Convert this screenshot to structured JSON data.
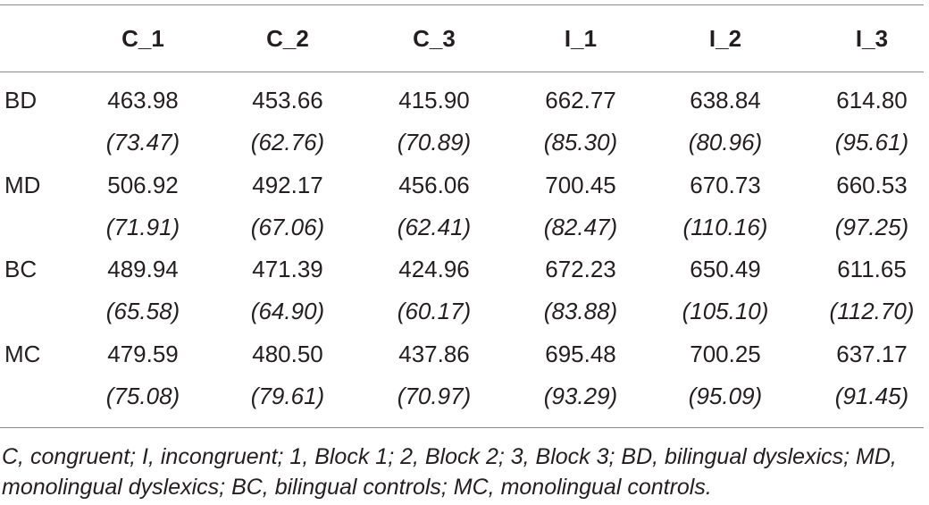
{
  "table": {
    "columns": [
      "C_1",
      "C_2",
      "C_3",
      "I_1",
      "I_2",
      "I_3"
    ],
    "rows": [
      {
        "label": "BD",
        "means": [
          "463.98",
          "453.66",
          "415.90",
          "662.77",
          "638.84",
          "614.80"
        ],
        "sds": [
          "(73.47)",
          "(62.76)",
          "(70.89)",
          "(85.30)",
          "(80.96)",
          "(95.61)"
        ]
      },
      {
        "label": "MD",
        "means": [
          "506.92",
          "492.17",
          "456.06",
          "700.45",
          "670.73",
          "660.53"
        ],
        "sds": [
          "(71.91)",
          "(67.06)",
          "(62.41)",
          "(82.47)",
          "(110.16)",
          "(97.25)"
        ]
      },
      {
        "label": "BC",
        "means": [
          "489.94",
          "471.39",
          "424.96",
          "672.23",
          "650.49",
          "611.65"
        ],
        "sds": [
          "(65.58)",
          "(64.90)",
          "(60.17)",
          "(83.88)",
          "(105.10)",
          "(112.70)"
        ]
      },
      {
        "label": "MC",
        "means": [
          "479.59",
          "480.50",
          "437.86",
          "695.48",
          "700.25",
          "637.17"
        ],
        "sds": [
          "(75.08)",
          "(79.61)",
          "(70.97)",
          "(93.29)",
          "(95.09)",
          "(91.45)"
        ]
      }
    ],
    "footnote": "C, congruent; I, incongruent; 1, Block 1; 2, Block 2; 3, Block 3; BD, bilingual dyslexics; MD, monolingual dyslexics; BC, bilingual controls; MC, monolingual controls."
  }
}
